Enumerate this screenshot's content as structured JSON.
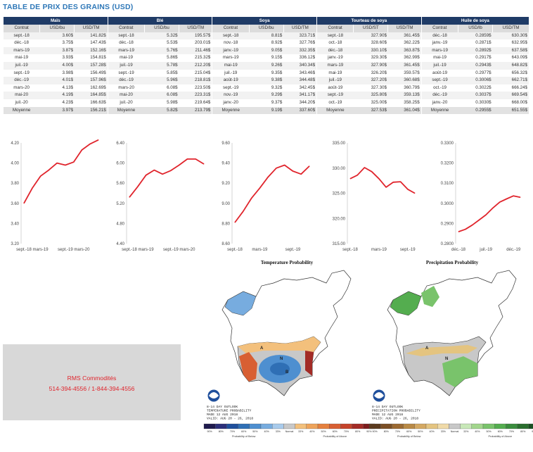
{
  "title": "TABLE DE PRIX DES GRAINS (USD)",
  "table": {
    "groups": [
      "Maïs",
      "Blé",
      "Soya",
      "Tourteau de soya",
      "Huile de soya"
    ],
    "subheaders": [
      [
        "Contrat",
        "USD/bu",
        "USD/TM"
      ],
      [
        "Contrat",
        "USD/bu",
        "USD/TM"
      ],
      [
        "Contrat",
        "USD/bu",
        "USD/TM"
      ],
      [
        "Contrat",
        "USD/ST",
        "USD/TM"
      ],
      [
        "Contrat",
        "USD/lb",
        "USD/TM"
      ]
    ],
    "rows": [
      [
        "sept.-18",
        "3.60$",
        "141.82$",
        "sept.-18",
        "5.32$",
        "195.57$",
        "sept.-18",
        "8.81$",
        "323.71$",
        "sept.-18",
        "327.90$",
        "361.45$",
        "déc.-18",
        "0.2859$",
        "630.30$"
      ],
      [
        "déc.-18",
        "3.75$",
        "147.43$",
        "déc.-18",
        "5.53$",
        "203.01$",
        "nov.-18",
        "8.92$",
        "327.76$",
        "oct.-18",
        "328.60$",
        "362.22$",
        "janv.-19",
        "0.2871$",
        "632.95$"
      ],
      [
        "mars-19",
        "3.87$",
        "152.16$",
        "mars-19",
        "5.76$",
        "211.46$",
        "janv.-19",
        "9.05$",
        "332.35$",
        "déc.-18",
        "330.10$",
        "363.87$",
        "mars-19",
        "0.2892$",
        "637.58$"
      ],
      [
        "mai-19",
        "3.93$",
        "154.81$",
        "mai-19",
        "5.86$",
        "215.32$",
        "mars-19",
        "9.15$",
        "336.12$",
        "janv.-19",
        "329.30$",
        "362.99$",
        "mai-19",
        "0.2917$",
        "643.09$"
      ],
      [
        "juil.-19",
        "4.00$",
        "157.28$",
        "juil.-19",
        "5.78$",
        "212.20$",
        "mai-19",
        "9.26$",
        "340.34$",
        "mars-19",
        "327.90$",
        "361.45$",
        "juil.-19",
        "0.2943$",
        "648.82$"
      ],
      [
        "sept.-19",
        "3.98$",
        "156.49$",
        "sept.-19",
        "5.85$",
        "215.04$",
        "juil.-19",
        "9.35$",
        "343.46$",
        "mai-19",
        "326.20$",
        "359.57$",
        "août-19",
        "0.2977$",
        "656.32$"
      ],
      [
        "déc.-19",
        "4.01$",
        "157.96$",
        "déc.-19",
        "5.96$",
        "218.81$",
        "août-19",
        "9.38$",
        "344.48$",
        "juil.-19",
        "327.20$",
        "360.68$",
        "sept.-19",
        "0.3006$",
        "662.71$"
      ],
      [
        "mars-20",
        "4.13$",
        "162.69$",
        "mars-20",
        "6.08$",
        "223.50$",
        "sept.-19",
        "9.32$",
        "342.45$",
        "août-19",
        "327.30$",
        "360.79$",
        "oct.-19",
        "0.3022$",
        "666.24$"
      ],
      [
        "mai-20",
        "4.19$",
        "164.85$",
        "mai-20",
        "6.08$",
        "223.31$",
        "nov.-19",
        "9.29$",
        "341.17$",
        "sept.-19",
        "325.80$",
        "359.13$",
        "déc.-19",
        "0.3037$",
        "669.54$"
      ],
      [
        "juil.-20",
        "4.23$",
        "166.63$",
        "juil.-20",
        "5.98$",
        "219.64$",
        "janv.-20",
        "9.37$",
        "344.20$",
        "oct.-19",
        "325.00$",
        "358.25$",
        "janv.-20",
        "0.3030$",
        "668.00$"
      ]
    ],
    "average": [
      "Moyenne",
      "3.97$",
      "156.21$",
      "Moyenne",
      "5.82$",
      "213.79$",
      "Moyenne",
      "9.19$",
      "337.60$",
      "Moyenne",
      "327.53$",
      "361.04$",
      "Moyenne",
      "0.2955$",
      "651.55$"
    ]
  },
  "chart_data": [
    {
      "type": "line",
      "x": [
        "sept.-18",
        "déc.-18",
        "mars-19",
        "mai-19",
        "juil.-19",
        "sept.-19",
        "déc.-19",
        "mars-20",
        "mai-20",
        "juil.-20"
      ],
      "values": [
        3.6,
        3.75,
        3.87,
        3.93,
        4.0,
        3.98,
        4.01,
        4.13,
        4.19,
        4.23
      ],
      "ylim": [
        3.2,
        4.2
      ],
      "yticks": [
        "4.20",
        "4.00",
        "3.80",
        "3.60",
        "3.40",
        "3.20"
      ],
      "xticklabels": [
        {
          "label": "sept.-18",
          "index": 0
        },
        {
          "label": "mars-19",
          "index": 2
        },
        {
          "label": "sept.-19",
          "index": 5
        },
        {
          "label": "mars-20",
          "index": 7
        }
      ],
      "color": "#e0242c"
    },
    {
      "type": "line",
      "x": [
        "sept.-18",
        "déc.-18",
        "mars-19",
        "mai-19",
        "juil.-19",
        "sept.-19",
        "déc.-19",
        "mars-20",
        "mai-20",
        "juil.-20"
      ],
      "values": [
        5.32,
        5.53,
        5.76,
        5.86,
        5.78,
        5.85,
        5.96,
        6.08,
        6.08,
        5.98
      ],
      "ylim": [
        4.4,
        6.4
      ],
      "yticks": [
        "6.40",
        "6.00",
        "5.60",
        "5.20",
        "4.80",
        "4.40"
      ],
      "xticklabels": [
        {
          "label": "sept.-18",
          "index": 0
        },
        {
          "label": "mars-19",
          "index": 2
        },
        {
          "label": "sept.-19",
          "index": 5
        },
        {
          "label": "mars-20",
          "index": 7
        }
      ],
      "color": "#e0242c"
    },
    {
      "type": "line",
      "x": [
        "sept.-18",
        "nov.-18",
        "janv.-19",
        "mars-19",
        "mai-19",
        "juil.-19",
        "août-19",
        "sept.-19",
        "nov.-19",
        "janv.-20"
      ],
      "values": [
        8.81,
        8.92,
        9.05,
        9.15,
        9.26,
        9.35,
        9.38,
        9.32,
        9.29,
        9.37
      ],
      "ylim": [
        8.6,
        9.6
      ],
      "yticks": [
        "9.60",
        "9.40",
        "9.20",
        "9.00",
        "8.80",
        "8.60"
      ],
      "xticklabels": [
        {
          "label": "sept.-18",
          "index": 0
        },
        {
          "label": "mars-19",
          "index": 3
        },
        {
          "label": "sept.-19",
          "index": 7
        }
      ],
      "color": "#e0242c"
    },
    {
      "type": "line",
      "x": [
        "sept.-18",
        "oct.-18",
        "déc.-18",
        "janv.-19",
        "mars-19",
        "mai-19",
        "juil.-19",
        "août-19",
        "sept.-19",
        "oct.-19"
      ],
      "values": [
        327.9,
        328.6,
        330.1,
        329.3,
        327.9,
        326.2,
        327.2,
        327.3,
        325.8,
        325.0
      ],
      "ylim": [
        315.0,
        335.0
      ],
      "yticks": [
        "335.00",
        "330.00",
        "325.00",
        "320.00",
        "315.00"
      ],
      "xticklabels": [
        {
          "label": "sept.-18",
          "index": 0
        },
        {
          "label": "mars-19",
          "index": 4
        },
        {
          "label": "sept.-19",
          "index": 8
        }
      ],
      "color": "#e0242c"
    },
    {
      "type": "line",
      "x": [
        "déc.-18",
        "janv.-19",
        "mars-19",
        "mai-19",
        "juil.-19",
        "août-19",
        "sept.-19",
        "oct.-19",
        "déc.-19",
        "janv.-20"
      ],
      "values": [
        0.2859,
        0.2871,
        0.2892,
        0.2917,
        0.2943,
        0.2977,
        0.3006,
        0.3022,
        0.3037,
        0.303
      ],
      "ylim": [
        0.28,
        0.33
      ],
      "yticks": [
        "0.3300",
        "0.3200",
        "0.3100",
        "0.3000",
        "0.2900",
        "0.2800"
      ],
      "xticklabels": [
        {
          "label": "déc.-18",
          "index": 0
        },
        {
          "label": "juil.-19",
          "index": 4
        },
        {
          "label": "déc.-19",
          "index": 8
        }
      ],
      "color": "#e0242c"
    }
  ],
  "maps": {
    "temperature": {
      "title": "Temperature Probability",
      "caption": [
        "8-14 DAY OUTLOOK",
        "TEMPERATURE PROBABILITY",
        "MADE 12 AUG 2018",
        "VALID: AUG 20 - 26, 2018"
      ],
      "region_labels": [
        {
          "text": "A"
        },
        {
          "text": "N"
        },
        {
          "text": "B"
        }
      ],
      "legend_below": "Probability of Below",
      "legend_above": "Probability of Above",
      "legend_normal": "Normal",
      "scale_labels": [
        "90%",
        "80%",
        "70%",
        "60%",
        "50%",
        "40%",
        "33%",
        "33%",
        "40%",
        "50%",
        "60%",
        "70%",
        "80%",
        "90%"
      ],
      "colors": {
        "below": [
          "#1f1a4d",
          "#2c2f7a",
          "#1f4f9c",
          "#2f6fb5",
          "#4e8fd0",
          "#77acdf",
          "#a8cbec"
        ],
        "normal": "#c8c8c8",
        "above": [
          "#f3c07c",
          "#eea35a",
          "#e5803e",
          "#d85f33",
          "#c5432b",
          "#a32b26",
          "#7c1c1c"
        ]
      }
    },
    "precipitation": {
      "title": "Precipitation Probability",
      "caption": [
        "8-14 DAY OUTLOOK",
        "PRECIPITATION PROBABILITY",
        "MADE 12 AUG 2018",
        "VALID: AUG 20 - 26, 2018"
      ],
      "region_labels": [
        {
          "text": "A"
        },
        {
          "text": "N"
        }
      ],
      "legend_below": "Probability of Below",
      "legend_above": "Probability of Above",
      "legend_normal": "Normal",
      "scale_labels": [
        "90%",
        "80%",
        "70%",
        "60%",
        "50%",
        "40%",
        "33%",
        "33%",
        "40%",
        "50%",
        "60%",
        "70%",
        "80%",
        "90%"
      ],
      "colors": {
        "below": [
          "#5b3a1e",
          "#7b4f25",
          "#9c6a32",
          "#b98a46",
          "#d4a862",
          "#e4c480",
          "#f0daa8"
        ],
        "normal": "#c8c8c8",
        "above": [
          "#c8e8b8",
          "#a2d68c",
          "#79c36b",
          "#54ad4f",
          "#3a8d3d",
          "#2a6e2e",
          "#1b4f22"
        ]
      }
    }
  },
  "contact": {
    "line1": "RMS Commodités",
    "line2": "514-394-4556 / 1-844-394-4556",
    "color": "#e0242c"
  }
}
